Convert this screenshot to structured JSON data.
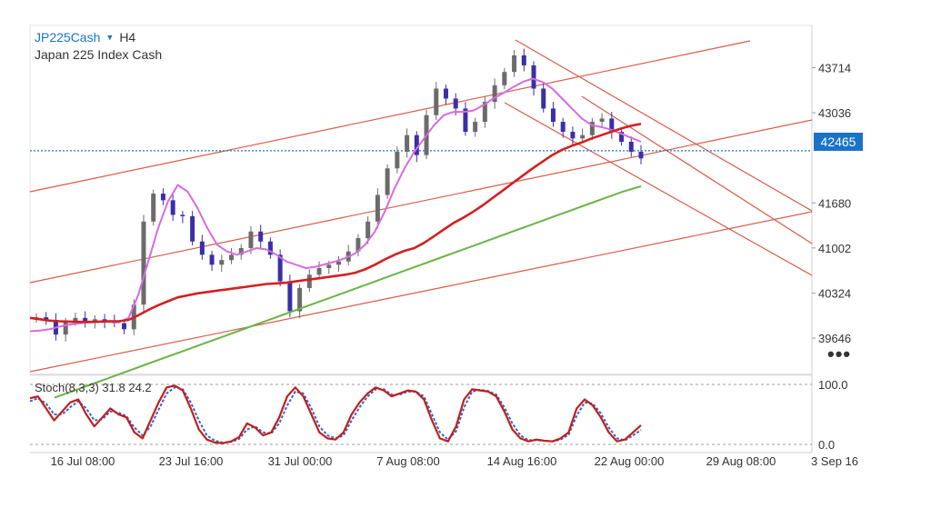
{
  "header": {
    "symbol": "JP225Cash",
    "timeframe": "H4",
    "description": "Japan 225 Index Cash",
    "dropdown_icon": "caret-down-icon"
  },
  "current_price": "42465",
  "more_icon": "more-horizontal-icon",
  "colors": {
    "price_line": "#1a73c8",
    "candle_up": "#6b6b6b",
    "candle_down": "#3b2fa6",
    "ma_fast": "#d66ce0",
    "ma_mid": "#d42020",
    "ma_slow": "#6ab445",
    "channel": "#d85c48",
    "stoch_k": "#c0201a",
    "stoch_d": "#3a5fd0",
    "axis_text": "#333333"
  },
  "chart_data": {
    "type": "candlestick",
    "price_axis": {
      "ticks": [
        "43714",
        "43036",
        "41680",
        "41002",
        "40324",
        "39646"
      ],
      "ylim": [
        39100,
        44350
      ]
    },
    "time_axis": {
      "ticks": [
        "16 Jul 08:00",
        "23 Jul 16:00",
        "31 Jul 00:00",
        "7 Aug 08:00",
        "14 Aug 16:00",
        "22 Aug 00:00",
        "29 Aug 08:00",
        "3 Sep 16"
      ]
    },
    "current_price_line": 42465,
    "close_path": [
      39960,
      39920,
      39700,
      39890,
      39950,
      39880,
      39930,
      39900,
      39870,
      39780,
      40150,
      41400,
      41820,
      41720,
      41500,
      41480,
      41100,
      40900,
      40750,
      40820,
      40900,
      41000,
      41250,
      41100,
      40900,
      40500,
      40050,
      40400,
      40600,
      40700,
      40750,
      40800,
      40950,
      41150,
      41400,
      41800,
      42200,
      42450,
      42700,
      42400,
      43000,
      43400,
      43250,
      43100,
      42750,
      42900,
      43200,
      43450,
      43650,
      43900,
      43750,
      43400,
      43100,
      42900,
      42750,
      42650,
      42700,
      42900,
      42950,
      42750,
      42600,
      42450,
      42350
    ],
    "indicators": [
      {
        "name": "ma_fast",
        "values": [
          39750,
          39760,
          39780,
          39820,
          39850,
          39870,
          39880,
          39890,
          39890,
          39880,
          39950,
          40300,
          40800,
          41300,
          41700,
          41950,
          41850,
          41600,
          41300,
          41050,
          40950,
          40900,
          40950,
          41000,
          40980,
          40900,
          40800,
          40750,
          40700,
          40720,
          40760,
          40800,
          40850,
          40920,
          41050,
          41250,
          41550,
          41900,
          42200,
          42450,
          42650,
          42850,
          43000,
          43050,
          43050,
          43070,
          43150,
          43250,
          43330,
          43420,
          43500,
          43550,
          43500,
          43400,
          43250,
          43100,
          42950,
          42850,
          42820,
          42780,
          42720,
          42660,
          42600
        ]
      },
      {
        "name": "ma_mid",
        "values": [
          39950,
          39930,
          39910,
          39900,
          39895,
          39890,
          39890,
          39895,
          39900,
          39900,
          39920,
          39990,
          40070,
          40140,
          40200,
          40260,
          40290,
          40320,
          40340,
          40360,
          40380,
          40400,
          40420,
          40440,
          40460,
          40470,
          40480,
          40500,
          40520,
          40540,
          40560,
          40580,
          40600,
          40630,
          40680,
          40750,
          40830,
          40900,
          40960,
          41000,
          41080,
          41180,
          41280,
          41380,
          41460,
          41550,
          41650,
          41760,
          41870,
          41980,
          42090,
          42200,
          42300,
          42400,
          42480,
          42540,
          42590,
          42650,
          42700,
          42750,
          42800,
          42840,
          42870
        ]
      },
      {
        "name": "ma_slow",
        "values": [
          38750,
          38850,
          38950,
          39050,
          39150,
          39250,
          39350,
          39450,
          39550,
          39650,
          39750,
          39850,
          39950,
          40050,
          40150,
          40250,
          40350,
          40450,
          40550,
          40650,
          40750,
          40850,
          40950,
          41050,
          41150,
          41250,
          41350,
          41450,
          41550,
          41650,
          41750,
          41850,
          41930
        ]
      }
    ],
    "stochastic": {
      "label": "Stoch(8,3,3) 31.8 24.2",
      "levels": [
        "100.0",
        "0.0"
      ],
      "k": [
        77,
        80,
        60,
        40,
        55,
        70,
        75,
        50,
        30,
        45,
        60,
        50,
        45,
        20,
        10,
        40,
        70,
        95,
        98,
        90,
        60,
        25,
        8,
        3,
        2,
        5,
        12,
        35,
        28,
        15,
        20,
        45,
        80,
        95,
        80,
        50,
        20,
        10,
        8,
        20,
        50,
        70,
        85,
        95,
        90,
        80,
        85,
        90,
        88,
        75,
        40,
        10,
        5,
        30,
        75,
        92,
        90,
        88,
        80,
        55,
        25,
        10,
        5,
        8,
        6,
        5,
        10,
        20,
        60,
        75,
        65,
        45,
        20,
        5,
        8,
        20,
        32
      ],
      "d": [
        72,
        77,
        68,
        50,
        50,
        62,
        72,
        60,
        40,
        42,
        55,
        53,
        47,
        28,
        15,
        30,
        58,
        85,
        95,
        92,
        70,
        40,
        15,
        6,
        3,
        4,
        9,
        25,
        30,
        20,
        18,
        35,
        65,
        88,
        85,
        60,
        30,
        15,
        10,
        15,
        40,
        62,
        80,
        92,
        92,
        83,
        83,
        88,
        88,
        80,
        50,
        20,
        8,
        22,
        62,
        88,
        91,
        89,
        83,
        62,
        35,
        15,
        7,
        7,
        6,
        5,
        8,
        16,
        48,
        70,
        68,
        52,
        28,
        10,
        7,
        15,
        24
      ]
    }
  }
}
